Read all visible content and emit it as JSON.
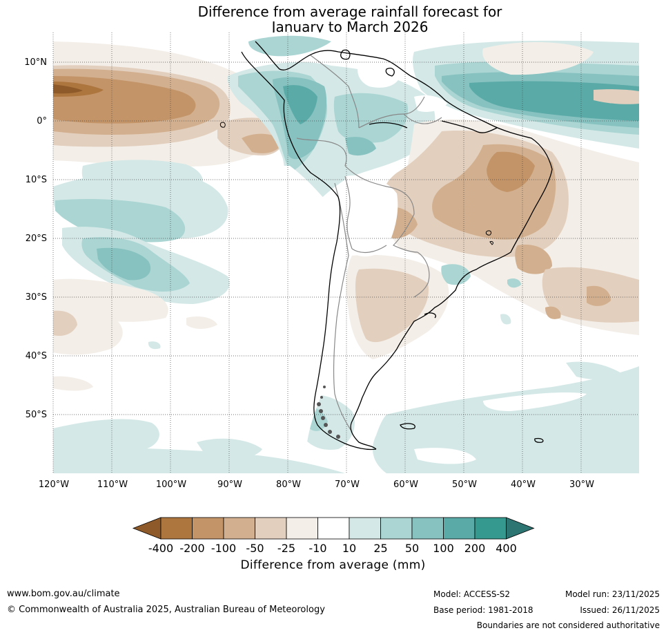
{
  "title": {
    "line1": "Difference from average rainfall forecast for",
    "line2": "January to March 2026"
  },
  "map": {
    "lon_range": [
      -120,
      -20
    ],
    "lat_range": [
      -60,
      15
    ],
    "lat_labels": [
      "10°N",
      "0°",
      "10°S",
      "20°S",
      "30°S",
      "40°S",
      "50°S"
    ],
    "lon_labels": [
      "120°W",
      "110°W",
      "100°W",
      "90°W",
      "80°W",
      "70°W",
      "60°W",
      "50°W",
      "40°W",
      "30°W"
    ]
  },
  "legend": {
    "title": "Difference from average (mm)",
    "ticks": [
      "-400",
      "-200",
      "-100",
      "-50",
      "-25",
      "-10",
      "10",
      "25",
      "50",
      "100",
      "200",
      "400"
    ],
    "colors": [
      "#8f5a2a",
      "#ae763f",
      "#c49469",
      "#d2b08f",
      "#e3cfbd",
      "#f3eee8",
      "#ffffff",
      "#d4e9e7",
      "#aad5d3",
      "#87c2c0",
      "#5aaaa8",
      "#36998f",
      "#2c7573"
    ]
  },
  "footer": {
    "website": "www.bom.gov.au/climate",
    "copyright": "© Commonwealth of Australia 2025, Australian Bureau of Meteorology",
    "model": "Model: ACCESS-S2",
    "base_period": "Base period: 1981-2018",
    "model_run": "Model run: 23/11/2025",
    "issued": "Issued: 26/11/2025",
    "disclaimer": "Boundaries are not considered authoritative"
  }
}
